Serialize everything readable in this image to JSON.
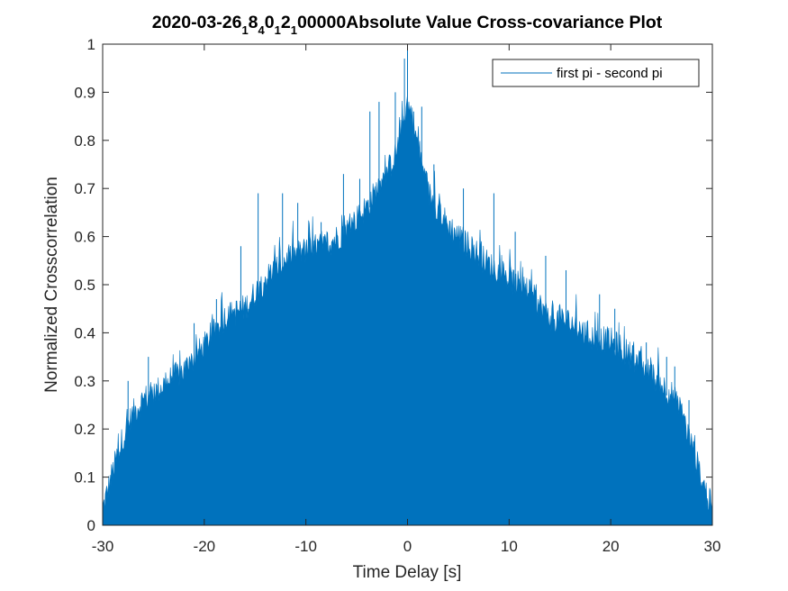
{
  "chart_data": {
    "type": "area",
    "title": {
      "prefix": "2020-03-26",
      "parts": [
        {
          "sub": "1",
          "text": "8"
        },
        {
          "sub": "4",
          "text": "0"
        },
        {
          "sub": "1",
          "text": "2"
        },
        {
          "sub": "1",
          "text": "00000Absolute Value Cross-covariance Plot"
        }
      ]
    },
    "xlabel": "Time Delay [s]",
    "ylabel": "Normalized Crosscorrelation",
    "xlim": [
      -30,
      30
    ],
    "ylim": [
      0,
      1
    ],
    "x_ticks": [
      "-30",
      "-20",
      "-10",
      "0",
      "10",
      "20",
      "30"
    ],
    "y_ticks": [
      "0",
      "0.1",
      "0.2",
      "0.3",
      "0.4",
      "0.5",
      "0.6",
      "0.7",
      "0.8",
      "0.9",
      "1"
    ],
    "grid": false,
    "legend": {
      "placement": "top-right",
      "entries": [
        "first pi - second pi"
      ]
    },
    "series": [
      {
        "name": "first pi - second pi",
        "color": "#0072BD",
        "envelope_x": [
          -30,
          -29,
          -28,
          -27,
          -26,
          -25,
          -24,
          -22,
          -20,
          -18,
          -16,
          -14,
          -12,
          -10,
          -8,
          -6,
          -4,
          -2,
          -1,
          0,
          1,
          2,
          4,
          6,
          8,
          10,
          12,
          14,
          16,
          18,
          20,
          22,
          24,
          25,
          26,
          27,
          28,
          29,
          30
        ],
        "envelope_y": [
          0.02,
          0.1,
          0.17,
          0.22,
          0.25,
          0.26,
          0.28,
          0.31,
          0.36,
          0.42,
          0.44,
          0.5,
          0.54,
          0.56,
          0.57,
          0.6,
          0.65,
          0.72,
          0.77,
          0.87,
          0.78,
          0.68,
          0.61,
          0.57,
          0.53,
          0.5,
          0.47,
          0.42,
          0.41,
          0.38,
          0.37,
          0.34,
          0.3,
          0.28,
          0.26,
          0.22,
          0.15,
          0.08,
          0.02
        ],
        "spikes": [
          {
            "x": -27.5,
            "y": 0.3
          },
          {
            "x": -25.5,
            "y": 0.35
          },
          {
            "x": -21,
            "y": 0.42
          },
          {
            "x": -18.8,
            "y": 0.47
          },
          {
            "x": -16.4,
            "y": 0.58
          },
          {
            "x": -14.7,
            "y": 0.69
          },
          {
            "x": -12.3,
            "y": 0.69
          },
          {
            "x": -10.8,
            "y": 0.67
          },
          {
            "x": -8.5,
            "y": 0.63
          },
          {
            "x": -6.3,
            "y": 0.73
          },
          {
            "x": -4.7,
            "y": 0.72
          },
          {
            "x": -3.7,
            "y": 0.86
          },
          {
            "x": -2.8,
            "y": 0.88
          },
          {
            "x": -1.2,
            "y": 0.9
          },
          {
            "x": -0.3,
            "y": 0.97
          },
          {
            "x": 0,
            "y": 1.0
          },
          {
            "x": 0.6,
            "y": 0.86
          },
          {
            "x": 1.4,
            "y": 0.87
          },
          {
            "x": 2.6,
            "y": 0.75
          },
          {
            "x": 5.5,
            "y": 0.7
          },
          {
            "x": 8.5,
            "y": 0.69
          },
          {
            "x": 10.6,
            "y": 0.61
          },
          {
            "x": 13.6,
            "y": 0.56
          },
          {
            "x": 15.6,
            "y": 0.53
          },
          {
            "x": 18.9,
            "y": 0.48
          },
          {
            "x": 20.4,
            "y": 0.45
          },
          {
            "x": 23.5,
            "y": 0.38
          },
          {
            "x": 25.5,
            "y": 0.35
          },
          {
            "x": 26.3,
            "y": 0.33
          },
          {
            "x": 27.7,
            "y": 0.26
          }
        ]
      }
    ]
  }
}
